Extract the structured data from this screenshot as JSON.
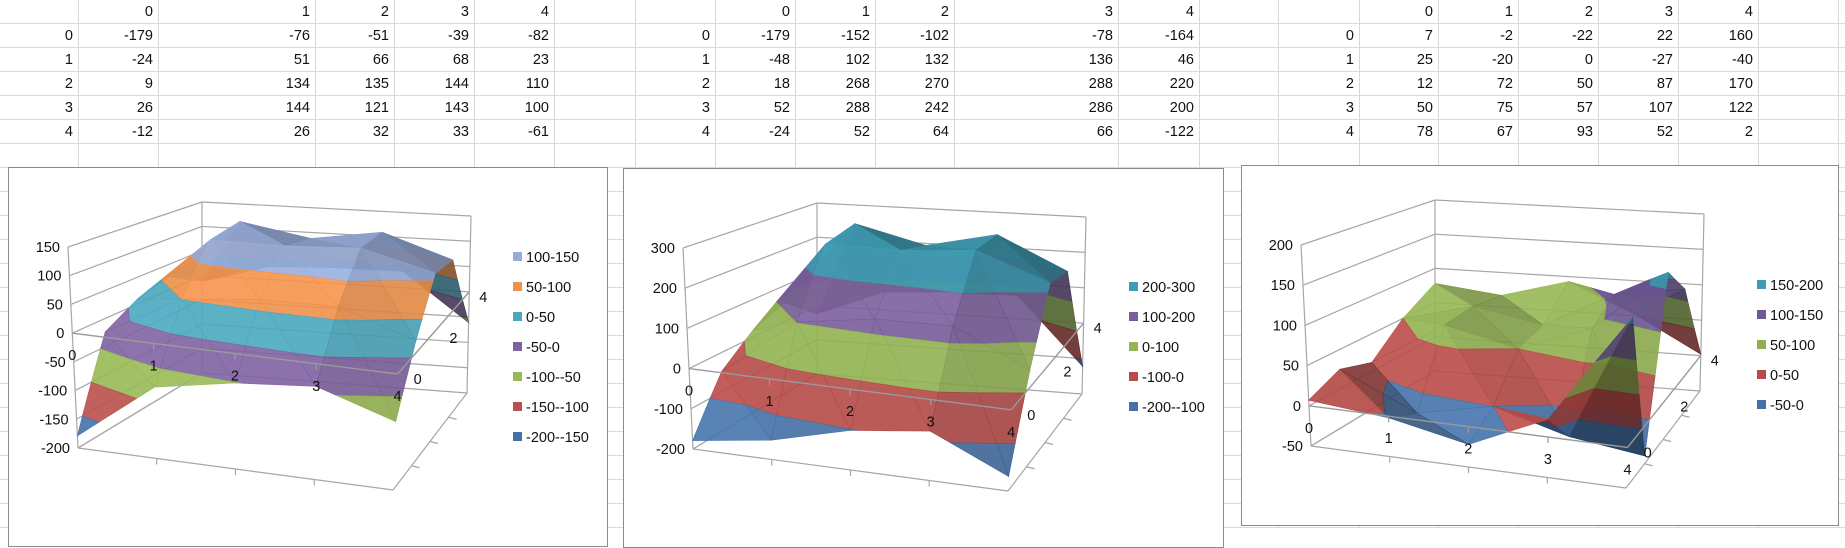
{
  "spreadsheet": {
    "tables": [
      {
        "col_headers": [
          "0",
          "1",
          "2",
          "3",
          "4"
        ],
        "rows": [
          {
            "label": "0",
            "values": [
              -179,
              -76,
              -51,
              -39,
              -82
            ]
          },
          {
            "label": "1",
            "values": [
              -24,
              51,
              66,
              68,
              23
            ]
          },
          {
            "label": "2",
            "values": [
              9,
              134,
              135,
              144,
              110
            ]
          },
          {
            "label": "3",
            "values": [
              26,
              144,
              121,
              143,
              100
            ]
          },
          {
            "label": "4",
            "values": [
              -12,
              26,
              32,
              33,
              -61
            ]
          }
        ]
      },
      {
        "col_headers": [
          "0",
          "1",
          "2",
          "3",
          "4"
        ],
        "rows": [
          {
            "label": "0",
            "values": [
              -179,
              -152,
              -102,
              -78,
              -164
            ]
          },
          {
            "label": "1",
            "values": [
              -48,
              102,
              132,
              136,
              46
            ]
          },
          {
            "label": "2",
            "values": [
              18,
              268,
              270,
              288,
              220
            ]
          },
          {
            "label": "3",
            "values": [
              52,
              288,
              242,
              286,
              200
            ]
          },
          {
            "label": "4",
            "values": [
              -24,
              52,
              64,
              66,
              -122
            ]
          }
        ]
      },
      {
        "col_headers": [
          "0",
          "1",
          "2",
          "3",
          "4"
        ],
        "rows": [
          {
            "label": "0",
            "values": [
              7,
              -2,
              -22,
              22,
              160
            ]
          },
          {
            "label": "1",
            "values": [
              25,
              -20,
              0,
              -27,
              -40
            ]
          },
          {
            "label": "2",
            "values": [
              12,
              72,
              50,
              87,
              170
            ]
          },
          {
            "label": "3",
            "values": [
              50,
              75,
              57,
              107,
              122
            ]
          },
          {
            "label": "4",
            "values": [
              78,
              67,
              93,
              52,
              2
            ]
          }
        ]
      }
    ]
  },
  "chart_data": [
    {
      "type": "surface",
      "x_labels": [
        "0",
        "1",
        "2",
        "3",
        "4"
      ],
      "depth_labels": [
        "0",
        "2",
        "4"
      ],
      "zlim": [
        -200,
        150
      ],
      "z_ticks": [
        "150",
        "100",
        "50",
        "0",
        "-50",
        "-100",
        "-150",
        "-200"
      ],
      "values": [
        [
          -179,
          -76,
          -51,
          -39,
          -82
        ],
        [
          -24,
          51,
          66,
          68,
          23
        ],
        [
          9,
          134,
          135,
          144,
          110
        ],
        [
          26,
          144,
          121,
          143,
          100
        ],
        [
          -12,
          26,
          32,
          33,
          -61
        ]
      ],
      "legend": [
        {
          "label": "100-150",
          "lo": 100,
          "hi": 150,
          "color": "#95ABD8"
        },
        {
          "label": "50-100",
          "lo": 50,
          "hi": 100,
          "color": "#F0904A"
        },
        {
          "label": "0-50",
          "lo": 0,
          "hi": 50,
          "color": "#4AA7BE"
        },
        {
          "label": "-50-0",
          "lo": -50,
          "hi": 0,
          "color": "#7E62A0"
        },
        {
          "label": "-100--50",
          "lo": -100,
          "hi": -50,
          "color": "#98B954"
        },
        {
          "label": "-150--100",
          "lo": -150,
          "hi": -100,
          "color": "#B9504D"
        },
        {
          "label": "-200--150",
          "lo": -200,
          "hi": -150,
          "color": "#4571A8"
        }
      ]
    },
    {
      "type": "surface",
      "x_labels": [
        "0",
        "1",
        "2",
        "3",
        "4"
      ],
      "depth_labels": [
        "0",
        "2",
        "4"
      ],
      "zlim": [
        -200,
        300
      ],
      "z_ticks": [
        "300",
        "200",
        "100",
        "0",
        "-100",
        "-200"
      ],
      "values": [
        [
          -179,
          -152,
          -102,
          -78,
          -164
        ],
        [
          -48,
          102,
          132,
          136,
          46
        ],
        [
          18,
          268,
          270,
          288,
          220
        ],
        [
          52,
          288,
          242,
          286,
          200
        ],
        [
          -24,
          52,
          64,
          66,
          -122
        ]
      ],
      "legend": [
        {
          "label": "200-300",
          "lo": 200,
          "hi": 300,
          "color": "#3F9CB4"
        },
        {
          "label": "100-200",
          "lo": 100,
          "hi": 200,
          "color": "#7A5E9C"
        },
        {
          "label": "0-100",
          "lo": 0,
          "hi": 100,
          "color": "#94B553"
        },
        {
          "label": "-100-0",
          "lo": -100,
          "hi": 0,
          "color": "#B84B48"
        },
        {
          "label": "-200--100",
          "lo": -200,
          "hi": -100,
          "color": "#4571A8"
        }
      ]
    },
    {
      "type": "surface",
      "x_labels": [
        "0",
        "1",
        "2",
        "3",
        "4"
      ],
      "depth_labels": [
        "0",
        "2",
        "4"
      ],
      "zlim": [
        -50,
        200
      ],
      "z_ticks": [
        "200",
        "150",
        "100",
        "50",
        "0",
        "-50"
      ],
      "values": [
        [
          7,
          -2,
          -22,
          22,
          160
        ],
        [
          25,
          -20,
          0,
          -27,
          -40
        ],
        [
          12,
          72,
          50,
          87,
          170
        ],
        [
          50,
          75,
          57,
          107,
          122
        ],
        [
          78,
          67,
          93,
          52,
          2
        ]
      ],
      "legend": [
        {
          "label": "150-200",
          "lo": 150,
          "hi": 200,
          "color": "#3F9CB4"
        },
        {
          "label": "100-150",
          "lo": 100,
          "hi": 150,
          "color": "#6E5896"
        },
        {
          "label": "50-100",
          "lo": 50,
          "hi": 100,
          "color": "#90B050"
        },
        {
          "label": "0-50",
          "lo": 0,
          "hi": 50,
          "color": "#B84B48"
        },
        {
          "label": "-50-0",
          "lo": -50,
          "hi": 0,
          "color": "#4571A8"
        }
      ]
    }
  ]
}
